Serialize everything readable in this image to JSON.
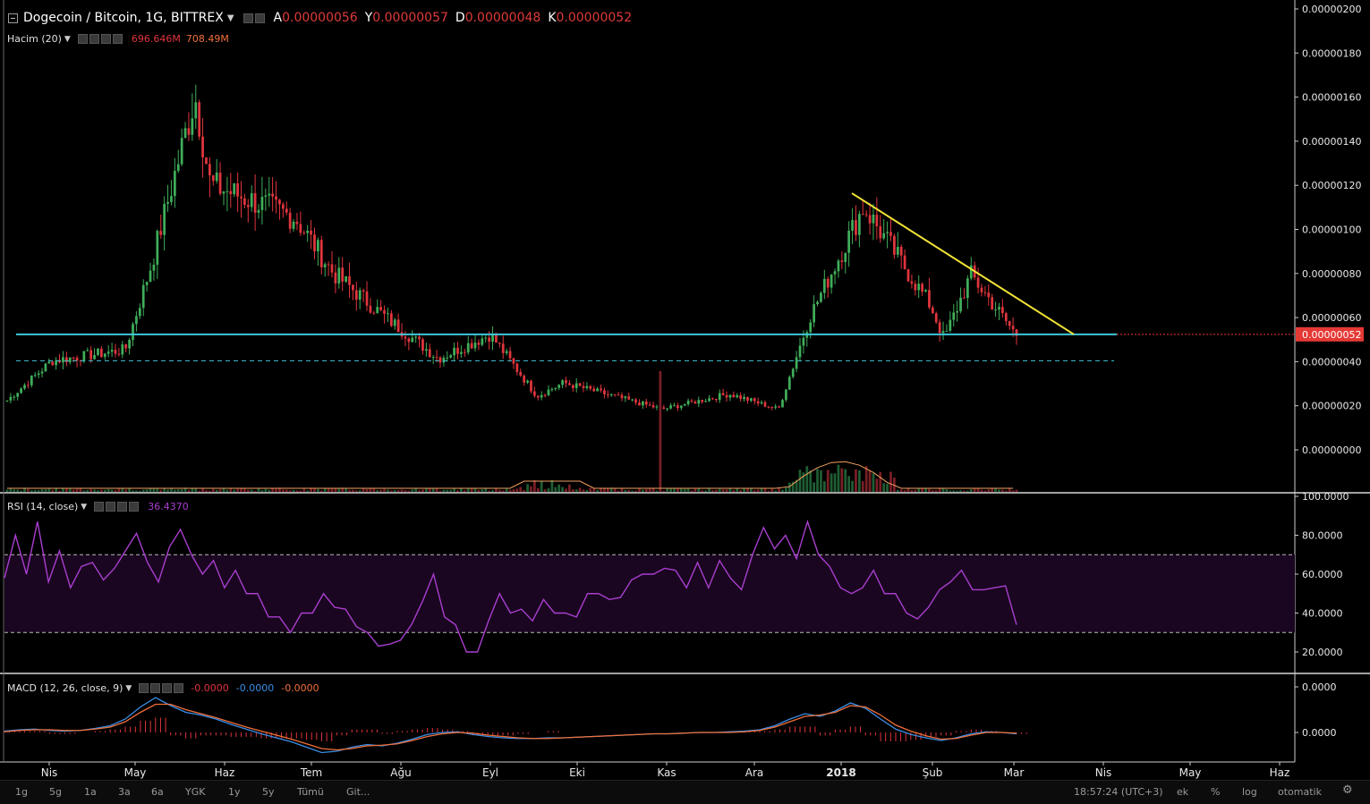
{
  "header": {
    "symbol_title": "Dogecoin / Bitcoin, 1G, BITTREX",
    "ohlc": [
      {
        "label": "A",
        "value": "0.00000056"
      },
      {
        "label": "Y",
        "value": "0.00000057"
      },
      {
        "label": "D",
        "value": "0.00000048"
      },
      {
        "label": "K",
        "value": "0.00000052"
      }
    ],
    "volume_indicator": "Hacim (20)",
    "volume_values": [
      "696.646M",
      "708.49M"
    ]
  },
  "rsi": {
    "label": "RSI (14, close)",
    "value": "36.4370"
  },
  "macd": {
    "label": "MACD (12, 26, close, 9)",
    "values": [
      "-0.0000",
      "-0.0000",
      "-0.0000"
    ]
  },
  "colors": {
    "up": "#3fae5a",
    "down": "#e0353d",
    "trendline": "#f2e437",
    "support": "#3fc7d9",
    "rsi_line": "#a93ecf",
    "macd_line": "#3a8ee6",
    "signal_line": "#f0703a",
    "price_tag": "#e53935"
  },
  "chart_data": [
    {
      "type": "candlestick",
      "title": "Dogecoin / Bitcoin, 1G, BITTREX",
      "x_ticks": [
        "Nis",
        "May",
        "Haz",
        "Tem",
        "Ağu",
        "Eyl",
        "Eki",
        "Kas",
        "Ara",
        "2018",
        "Şub",
        "Mar",
        "Nis",
        "May",
        "Haz"
      ],
      "y_ticks": [
        "0.00000200",
        "0.00000180",
        "0.00000160",
        "0.00000140",
        "0.00000120",
        "0.00000100",
        "0.00000080",
        "0.00000060",
        "0.00000040",
        "0.00000020",
        "0.00000000"
      ],
      "ylim": [
        0,
        2e-06
      ],
      "last_price": "0.00000052",
      "close_path": [
        [
          "Nis",
          2.2e-07
        ],
        [
          "Nis",
          4e-07
        ],
        [
          "May",
          4.5e-07
        ],
        [
          "May",
          8.5e-07
        ],
        [
          "Haz",
          1.6e-06
        ],
        [
          "Haz",
          1.2e-06
        ],
        [
          "Tem",
          1.05e-06
        ],
        [
          "Tem",
          8e-07
        ],
        [
          "Ağu",
          6e-07
        ],
        [
          "Ağu",
          4.1e-07
        ],
        [
          "Eyl",
          5.2e-07
        ],
        [
          "Eyl",
          2.4e-07
        ],
        [
          "Eki",
          3e-07
        ],
        [
          "Kas",
          1.8e-07
        ],
        [
          "Ara",
          2.5e-07
        ],
        [
          "Ara",
          1.8e-07
        ],
        [
          "2018",
          6e-07
        ],
        [
          "2018",
          1.1e-06
        ],
        [
          "Şub",
          6.5e-07
        ],
        [
          "Şub",
          5e-07
        ],
        [
          "Şub",
          7.9e-07
        ],
        [
          "Mar",
          5.2e-07
        ]
      ],
      "annotations": {
        "trendline": {
          "from": [
            "2018",
            1.16e-06
          ],
          "to": [
            "Nis",
            5.2e-07
          ]
        },
        "support_solid": 5.2e-07,
        "support_dashed": 4e-07
      }
    },
    {
      "type": "line",
      "title": "RSI (14, close)",
      "y_ticks": [
        "100.0000",
        "80.0000",
        "60.0000",
        "40.0000",
        "20.0000"
      ],
      "ylim": [
        10,
        100
      ],
      "bands": [
        30,
        70
      ],
      "last_value": 36.437,
      "values": [
        60,
        78,
        62,
        85,
        58,
        70,
        55,
        62,
        68,
        55,
        65,
        70,
        83,
        64,
        58,
        72,
        85,
        68,
        62,
        65,
        55,
        60,
        52,
        48,
        40,
        36,
        32,
        38,
        42,
        48,
        45,
        40,
        35,
        28,
        25,
        22,
        28,
        32,
        48,
        58,
        40,
        32,
        22,
        18,
        38,
        48,
        42,
        40,
        38,
        45,
        42,
        38,
        40,
        48,
        52,
        45,
        50,
        55,
        62,
        58,
        65,
        60,
        55,
        64,
        55,
        65,
        60,
        50,
        72,
        82,
        75,
        78,
        70,
        85,
        72,
        62,
        55,
        48,
        55,
        60,
        52,
        48,
        42,
        35,
        45,
        50,
        58,
        60,
        54,
        50,
        55,
        52,
        36
      ]
    },
    {
      "type": "line",
      "title": "MACD (12, 26, close, 9)",
      "y_ticks": [
        "0.0000",
        "0.0000"
      ],
      "series": [
        {
          "values": [
            0.02,
            0.04,
            0.05,
            0.03,
            0.02,
            0.03,
            0.06,
            0.1,
            0.2,
            0.38,
            0.52,
            0.4,
            0.3,
            0.26,
            0.2,
            0.12,
            0.05,
            -0.02,
            -0.08,
            -0.14,
            -0.22,
            -0.3,
            -0.28,
            -0.22,
            -0.18,
            -0.2,
            -0.16,
            -0.1,
            -0.03,
            0.0,
            0.01,
            -0.03,
            -0.06,
            -0.08,
            -0.09,
            -0.09,
            -0.08,
            -0.08,
            -0.07,
            -0.06,
            -0.05,
            -0.04,
            -0.03,
            -0.02,
            -0.02,
            -0.01,
            0.0,
            0.0,
            0.01,
            0.02,
            0.04,
            0.1,
            0.2,
            0.28,
            0.24,
            0.32,
            0.44,
            0.36,
            0.2,
            0.05,
            -0.03,
            -0.08,
            -0.12,
            -0.08,
            -0.02,
            0.01,
            0.0,
            -0.02
          ]
        },
        {
          "values": [
            0.01,
            0.03,
            0.04,
            0.04,
            0.03,
            0.03,
            0.05,
            0.08,
            0.16,
            0.3,
            0.42,
            0.42,
            0.34,
            0.28,
            0.22,
            0.15,
            0.08,
            0.02,
            -0.04,
            -0.1,
            -0.17,
            -0.24,
            -0.26,
            -0.24,
            -0.2,
            -0.19,
            -0.17,
            -0.12,
            -0.06,
            -0.02,
            0.0,
            -0.01,
            -0.04,
            -0.06,
            -0.08,
            -0.09,
            -0.09,
            -0.08,
            -0.07,
            -0.06,
            -0.05,
            -0.04,
            -0.03,
            -0.02,
            -0.02,
            -0.01,
            0.0,
            0.0,
            0.0,
            0.01,
            0.03,
            0.08,
            0.16,
            0.24,
            0.26,
            0.3,
            0.4,
            0.38,
            0.26,
            0.11,
            0.02,
            -0.05,
            -0.1,
            -0.09,
            -0.04,
            0.0,
            0.0,
            -0.01
          ]
        }
      ]
    }
  ],
  "bottom_bar": {
    "timeframes": [
      "1g",
      "5g",
      "1a",
      "3a",
      "6a",
      "YGK",
      "1y",
      "5y",
      "Tümü",
      "Git..."
    ],
    "clock": "18:57:24 (UTC+3)",
    "options": [
      "ek",
      "%",
      "log",
      "otomatik"
    ]
  }
}
